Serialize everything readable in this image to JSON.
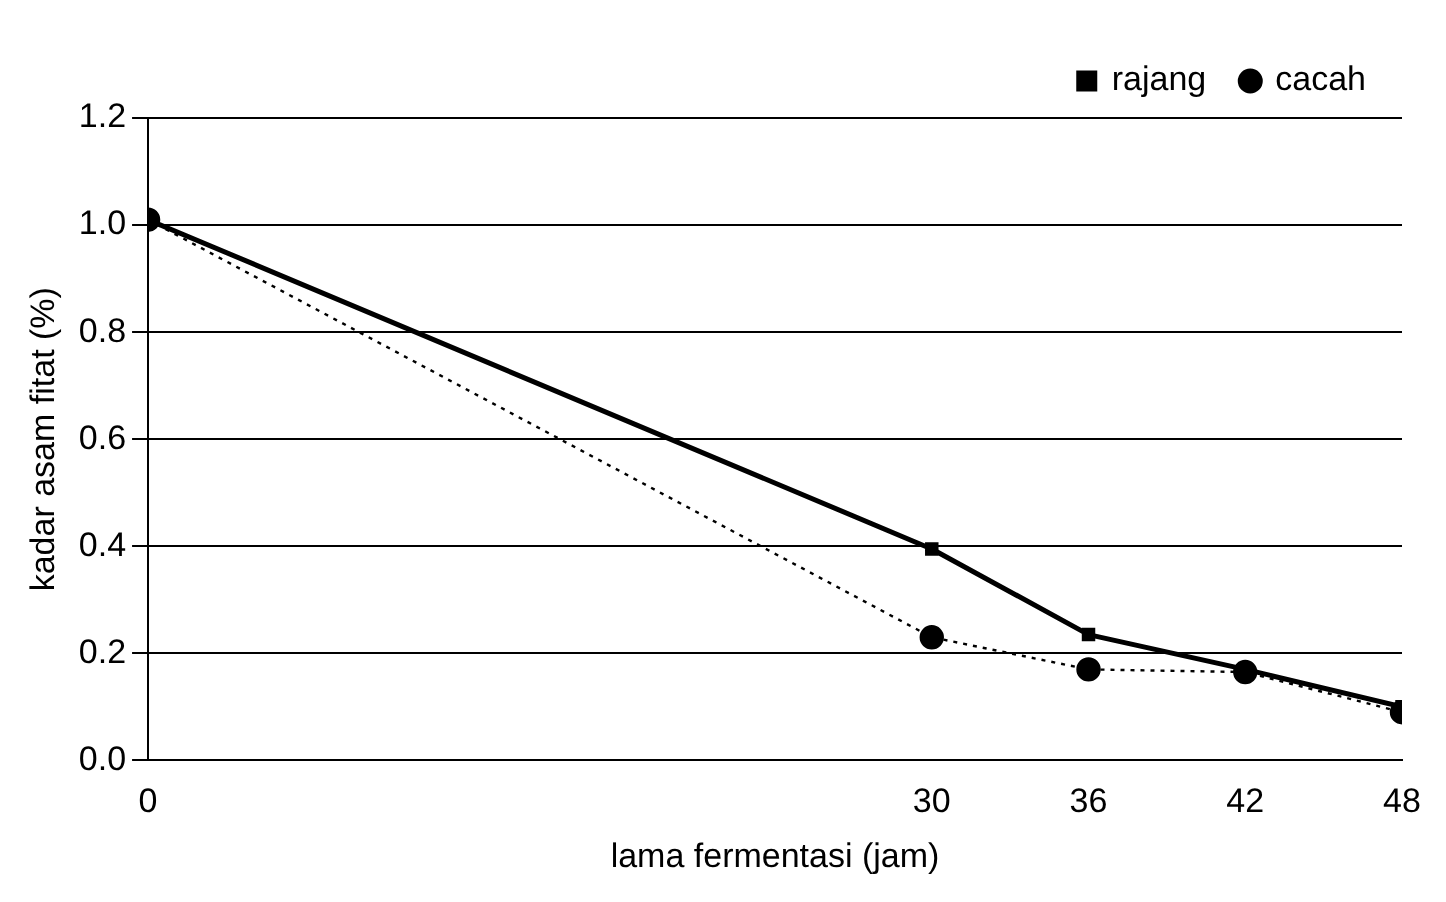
{
  "chart_data": {
    "type": "line",
    "xlabel": "lama fermentasi (jam)",
    "ylabel": "kadar asam fitat (%)",
    "x": [
      0,
      30,
      36,
      42,
      48
    ],
    "series": [
      {
        "name": "cacah",
        "color": "#000000",
        "values": [
          1.01,
          0.23,
          0.17,
          0.165,
          0.09
        ],
        "marker": "circle",
        "line_style": "dotted"
      },
      {
        "name": "rajang",
        "color": "#000000",
        "values": [
          1.01,
          0.395,
          0.235,
          0.17,
          0.1
        ],
        "marker": "square",
        "line_style": "solid"
      }
    ],
    "xlim": [
      0,
      48
    ],
    "xticks": [
      0,
      30,
      36,
      42,
      48
    ],
    "ylim": [
      0,
      1.2
    ],
    "yticks": [
      {
        "value": 0,
        "label": "0.0"
      },
      {
        "value": 0.2,
        "label": "0.2"
      },
      {
        "value": 0.4,
        "label": "0.4"
      },
      {
        "value": 0.6,
        "label": "0.6"
      },
      {
        "value": 0.8,
        "label": "0.8"
      },
      {
        "value": 1.0,
        "label": "1.0"
      },
      {
        "value": 1.2,
        "label": "1.2"
      }
    ],
    "grid": "y",
    "legend": "top right"
  }
}
